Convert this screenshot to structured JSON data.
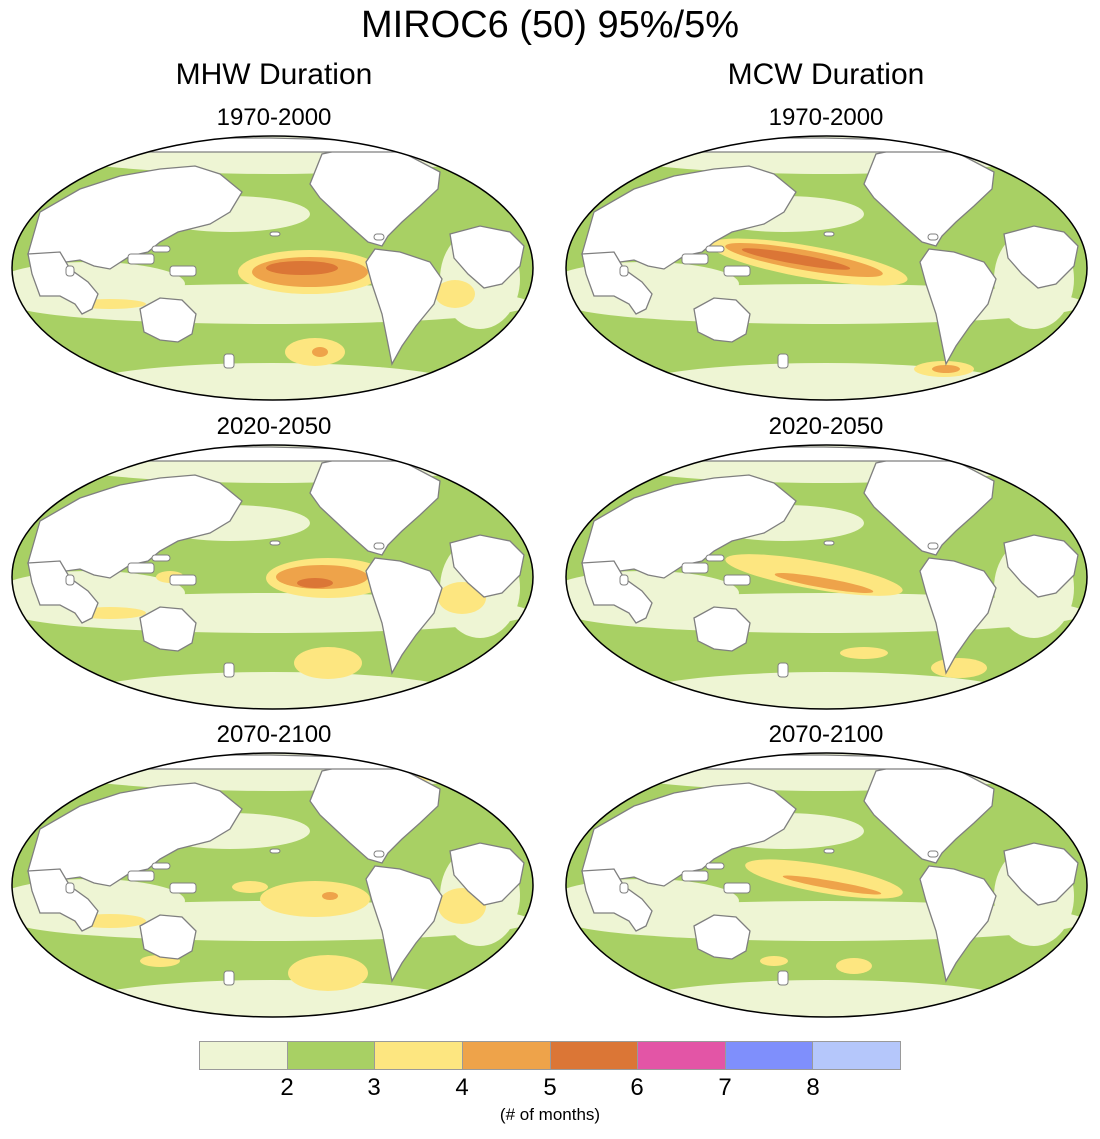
{
  "title": "MIROC6 (50) 95%/5%",
  "columns": [
    {
      "title": "MHW Duration",
      "panels": [
        "1970-2000",
        "2020-2050",
        "2070-2100"
      ]
    },
    {
      "title": "MCW Duration",
      "panels": [
        "1970-2000",
        "2020-2050",
        "2070-2100"
      ]
    }
  ],
  "colorbar": {
    "colors": [
      "#eef5d4",
      "#a8d064",
      "#fde680",
      "#eea34a",
      "#db7636",
      "#e355a6",
      "#7f8ffc",
      "#b5c7fb"
    ],
    "ticks": [
      "2",
      "3",
      "4",
      "5",
      "6",
      "7",
      "8"
    ],
    "unit": "(# of months)"
  },
  "map_data": {
    "land_color": "#ffffff",
    "coastline_color": "#7f7f7f",
    "ocean_base_color": "#a8d064"
  }
}
